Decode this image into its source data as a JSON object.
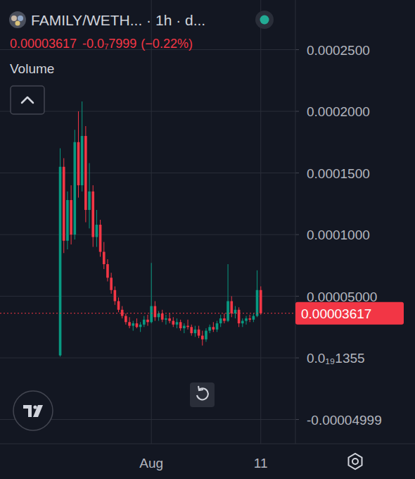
{
  "header": {
    "price": "0.00003617",
    "change": "-0.0₇7999",
    "change_pct": "(−0.22%)",
    "volume_label": "Volume"
  },
  "chart_data": {
    "type": "candlestick",
    "title": "FAMILY/WETH... · 1h · d...",
    "categories": [
      null,
      null,
      null,
      null,
      null,
      null,
      null,
      null,
      null,
      null,
      null,
      null,
      null,
      null,
      null,
      null,
      null,
      null,
      null,
      null,
      null,
      null,
      null,
      null,
      null,
      null,
      null,
      null,
      null,
      null,
      null,
      null,
      null,
      null,
      null,
      null,
      null,
      null,
      null,
      null,
      null,
      "Aug",
      null,
      null,
      null,
      null,
      null,
      null,
      null,
      null,
      null,
      null,
      null,
      null,
      null,
      null,
      null,
      null,
      null,
      null,
      null,
      null,
      null,
      null,
      null,
      null,
      null,
      null,
      null,
      null,
      null,
      "11",
      null,
      null,
      null,
      null,
      null,
      null,
      null,
      null,
      null
    ],
    "open": [
      null,
      null,
      null,
      null,
      null,
      null,
      null,
      null,
      null,
      null,
      null,
      null,
      null,
      null,
      null,
      null,
      2e-06,
      0.000155,
      9.5e-05,
      0.000128,
      0.0001,
      0.000175,
      0.00014,
      0.00018,
      0.00012,
      0.000135,
      9.8e-05,
      0.000108,
      8.6e-05,
      7.6e-05,
      6.5e-05,
      5.5e-05,
      4.6e-05,
      3.9e-05,
      3.4e-05,
      2.9e-05,
      2.6e-05,
      2.8e-05,
      2.5e-05,
      2.7e-05,
      3.1e-05,
      2.9e-05,
      4.2e-05,
      3.3e-05,
      3.6e-05,
      3.1e-05,
      3.2e-05,
      3e-05,
      2.7e-05,
      2.9e-05,
      2.4e-05,
      2.6e-05,
      2.5e-05,
      2e-05,
      2.3e-05,
      1.8e-05,
      1.5e-05,
      2.2e-05,
      2.5e-05,
      2.3e-05,
      2.8e-05,
      3.2e-05,
      3e-05,
      4.6e-05,
      3.6e-05,
      3.9e-05,
      2.8e-05,
      3e-05,
      3.2e-05,
      3.1e-05,
      3.4e-05,
      5.5e-05,
      null,
      null,
      null,
      null,
      null,
      null,
      null,
      null,
      null
    ],
    "high": [
      null,
      null,
      null,
      null,
      null,
      null,
      null,
      null,
      null,
      null,
      null,
      null,
      null,
      null,
      null,
      null,
      0.00017,
      0.000162,
      0.000135,
      0.00014,
      0.000185,
      0.0002,
      0.000208,
      0.000188,
      0.000158,
      0.00014,
      0.00012,
      0.000112,
      9.4e-05,
      8e-05,
      6.9e-05,
      5.8e-05,
      4.9e-05,
      4.2e-05,
      3.6e-05,
      3.3e-05,
      3e-05,
      3.2e-05,
      2.9e-05,
      3.4e-05,
      3.5e-05,
      7.7e-05,
      4.6e-05,
      3.8e-05,
      3.9e-05,
      3.5e-05,
      3.6e-05,
      3.3e-05,
      3.2e-05,
      3.1e-05,
      2.8e-05,
      3.1e-05,
      2.7e-05,
      2.6e-05,
      2.6e-05,
      2.2e-05,
      2.4e-05,
      2.7e-05,
      2.9e-05,
      3e-05,
      3.5e-05,
      3.6e-05,
      7.6e-05,
      5e-05,
      4.2e-05,
      4.1e-05,
      3.2e-05,
      3.4e-05,
      3.5e-05,
      3.6e-05,
      7.1e-05,
      5.8e-05,
      null,
      null,
      null,
      null,
      null,
      null,
      null,
      null,
      null
    ],
    "low": [
      null,
      null,
      null,
      null,
      null,
      null,
      null,
      null,
      null,
      null,
      null,
      null,
      null,
      null,
      null,
      null,
      1e-06,
      8.5e-05,
      8.8e-05,
      9.2e-05,
      9.6e-05,
      0.00013,
      0.000135,
      0.00011,
      0.000105,
      9e-05,
      9e-05,
      8.2e-05,
      7.2e-05,
      6.2e-05,
      5.2e-05,
      4.3e-05,
      3.7e-05,
      3.2e-05,
      2.7e-05,
      2.4e-05,
      2.2e-05,
      2.4e-05,
      2.1e-05,
      2.5e-05,
      2.6e-05,
      2.8e-05,
      3e-05,
      3e-05,
      2.9e-05,
      2.7e-05,
      2.8e-05,
      2.5e-05,
      2.4e-05,
      2.2e-05,
      2e-05,
      2.3e-05,
      1.8e-05,
      1.7e-05,
      1.6e-05,
      1e-05,
      1.3e-05,
      2e-05,
      2.1e-05,
      2.1e-05,
      2.5e-05,
      2.8e-05,
      2.9e-05,
      3.3e-05,
      3.2e-05,
      2.5e-05,
      2.5e-05,
      2.7e-05,
      2.9e-05,
      2.9e-05,
      3.3e-05,
      3.5e-05,
      null,
      null,
      null,
      null,
      null,
      null,
      null,
      null,
      null
    ],
    "close": [
      null,
      null,
      null,
      null,
      null,
      null,
      null,
      null,
      null,
      null,
      null,
      null,
      null,
      null,
      null,
      null,
      0.000155,
      9.5e-05,
      0.000128,
      0.0001,
      0.000175,
      0.00014,
      0.00018,
      0.00012,
      0.000135,
      9.8e-05,
      0.000108,
      8.6e-05,
      7.6e-05,
      6.5e-05,
      5.5e-05,
      4.6e-05,
      3.9e-05,
      3.4e-05,
      2.9e-05,
      2.6e-05,
      2.8e-05,
      2.5e-05,
      2.7e-05,
      3.1e-05,
      2.9e-05,
      4.2e-05,
      3.3e-05,
      3.6e-05,
      3.1e-05,
      3.2e-05,
      3e-05,
      2.7e-05,
      2.9e-05,
      2.4e-05,
      2.6e-05,
      2.5e-05,
      2e-05,
      2.3e-05,
      1.8e-05,
      1.5e-05,
      2.2e-05,
      2.5e-05,
      2.3e-05,
      2.8e-05,
      3.2e-05,
      3e-05,
      4.6e-05,
      3.6e-05,
      3.9e-05,
      2.8e-05,
      3e-05,
      3.2e-05,
      3.1e-05,
      3.4e-05,
      5.5e-05,
      3.617e-05,
      null,
      null,
      null,
      null,
      null,
      null,
      null,
      null,
      null
    ],
    "last_price": {
      "value": 3.617e-05,
      "label": "0.00003617"
    },
    "ylim": [
      -6.97e-05,
      0.0002903
    ],
    "yticks": [
      {
        "value": 0.00025,
        "label": "0.0002500"
      },
      {
        "value": 0.0002,
        "label": "0.0002000"
      },
      {
        "value": 0.00015,
        "label": "0.0001500"
      },
      {
        "value": 0.0001,
        "label": "0.0001000"
      },
      {
        "value": 5e-05,
        "label": "0.00005000"
      },
      {
        "value": 1.355e-20,
        "label": "0.0₁₉1355"
      },
      {
        "value": -4.999e-05,
        "label": "-0.00004999"
      }
    ],
    "grid": true
  }
}
